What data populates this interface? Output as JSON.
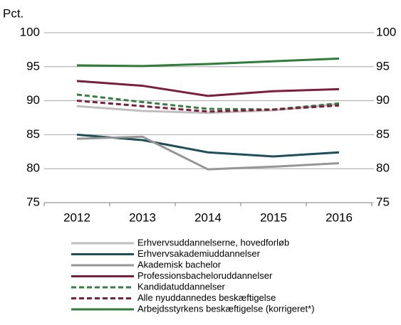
{
  "chart_data": {
    "type": "line",
    "ylabel": "Pct.",
    "categories": [
      "2012",
      "2013",
      "2014",
      "2015",
      "2016"
    ],
    "ylim": [
      75,
      100
    ],
    "yticks": [
      75,
      80,
      85,
      90,
      95,
      100
    ],
    "y2lim": [
      75,
      100
    ],
    "y2ticks": [
      75,
      80,
      85,
      90,
      95,
      100
    ],
    "grid": true,
    "legend": "bottom",
    "series": [
      {
        "name": "Erhvervsuddannelserne, hovedforløb",
        "color": "#bfbfbf",
        "dashed": false,
        "values": [
          89.2,
          88.5,
          88.2,
          88.6,
          89.5
        ]
      },
      {
        "name": "Erhvervsakademiuddannelser",
        "color": "#1f4e5a",
        "dashed": false,
        "values": [
          85.0,
          84.2,
          82.4,
          81.8,
          82.4
        ]
      },
      {
        "name": "Akademisk bachelor",
        "color": "#969696",
        "dashed": false,
        "values": [
          84.4,
          84.7,
          79.9,
          80.3,
          80.8
        ]
      },
      {
        "name": "Professionsbacheloruddannelser",
        "color": "#7b1f3a",
        "dashed": false,
        "values": [
          92.9,
          92.2,
          90.7,
          91.4,
          91.7
        ]
      },
      {
        "name": "Kandidatuddannelser",
        "color": "#3a7d44",
        "dashed": true,
        "values": [
          90.9,
          89.8,
          88.8,
          88.7,
          89.6
        ]
      },
      {
        "name": "Alle nyuddannedes beskæftigelse",
        "color": "#7b1f3a",
        "dashed": true,
        "values": [
          90.0,
          89.2,
          88.4,
          88.7,
          89.3
        ]
      },
      {
        "name": "Arbejdsstyrkens beskæftigelse (korrigeret*)",
        "color": "#2e7d3a",
        "dashed": false,
        "values": [
          95.2,
          95.1,
          95.4,
          95.8,
          96.2
        ]
      }
    ]
  }
}
